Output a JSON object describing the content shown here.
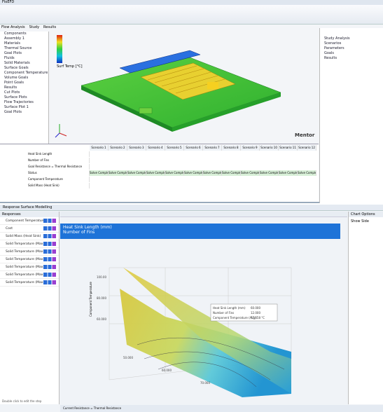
{
  "cad": {
    "title": "FloEFD",
    "legend_title": "Surf Temp [°C]",
    "brand": "Mentor",
    "tabs": [
      "Flow Analysis",
      "Study",
      "Results"
    ],
    "tree": [
      "Components",
      "Assembly 1",
      "Materials",
      "Thermal Source",
      "Goal Plots",
      "Fluids",
      "Solid Materials",
      "Surface Goals",
      "Component Temperature",
      "Volume Goals",
      "Point Goals",
      "Results",
      "Cut Plots",
      "Surface Plots",
      "Flow Trajectories",
      "Surface Plot 1",
      "Goal Plots"
    ],
    "table": {
      "columns": [
        "Scenario 1",
        "Scenario 2",
        "Scenario 3",
        "Scenario 4",
        "Scenario 5",
        "Scenario 6",
        "Scenario 7",
        "Scenario 8",
        "Scenario 9",
        "Scenario 10",
        "Scenario 11",
        "Scenario 12"
      ],
      "rows": [
        "Heat Sink Length",
        "Number of Fins",
        "Goal Resistance = Thermal Resistance",
        "Status",
        "Component Temperature",
        "Solid Mass (Heat Sink)"
      ],
      "status": "Solve Complete"
    },
    "side": [
      "Study Analysis",
      "Scenarios",
      "Parameters",
      "Goals",
      "Results"
    ]
  },
  "rsm": {
    "title": "Response Surface Modelling",
    "panel": "Responses",
    "responses": [
      "Component Temperature",
      "Cost",
      "Solid Mass (Heat Sink)",
      "Solid Temperature (Max...",
      "Solid Temperature (Max...",
      "Solid Temperature (Max...",
      "Solid Temperature (Max...",
      "Solid Temperature (Max...",
      "Solid Temperature (Max..."
    ],
    "x_label": "Heat Sink Length (mm)",
    "y_label": "Number of Fins",
    "z_label": "Component Temperature",
    "zticks": [
      "100.00",
      "80.000",
      "60.000"
    ],
    "xticks": [
      "50.000",
      "60.000",
      "70.000"
    ],
    "tooltip": [
      "Heat Sink Length (mm)",
      "60.000",
      "Number of Fins",
      "12.000",
      "Component Temperature (Avg)",
      "77.658 °C"
    ],
    "options": "Chart Options",
    "show_side": "Show Side",
    "footer": "Current Resistance = Thermal Resistance",
    "hint": "Double click to edit the step"
  }
}
